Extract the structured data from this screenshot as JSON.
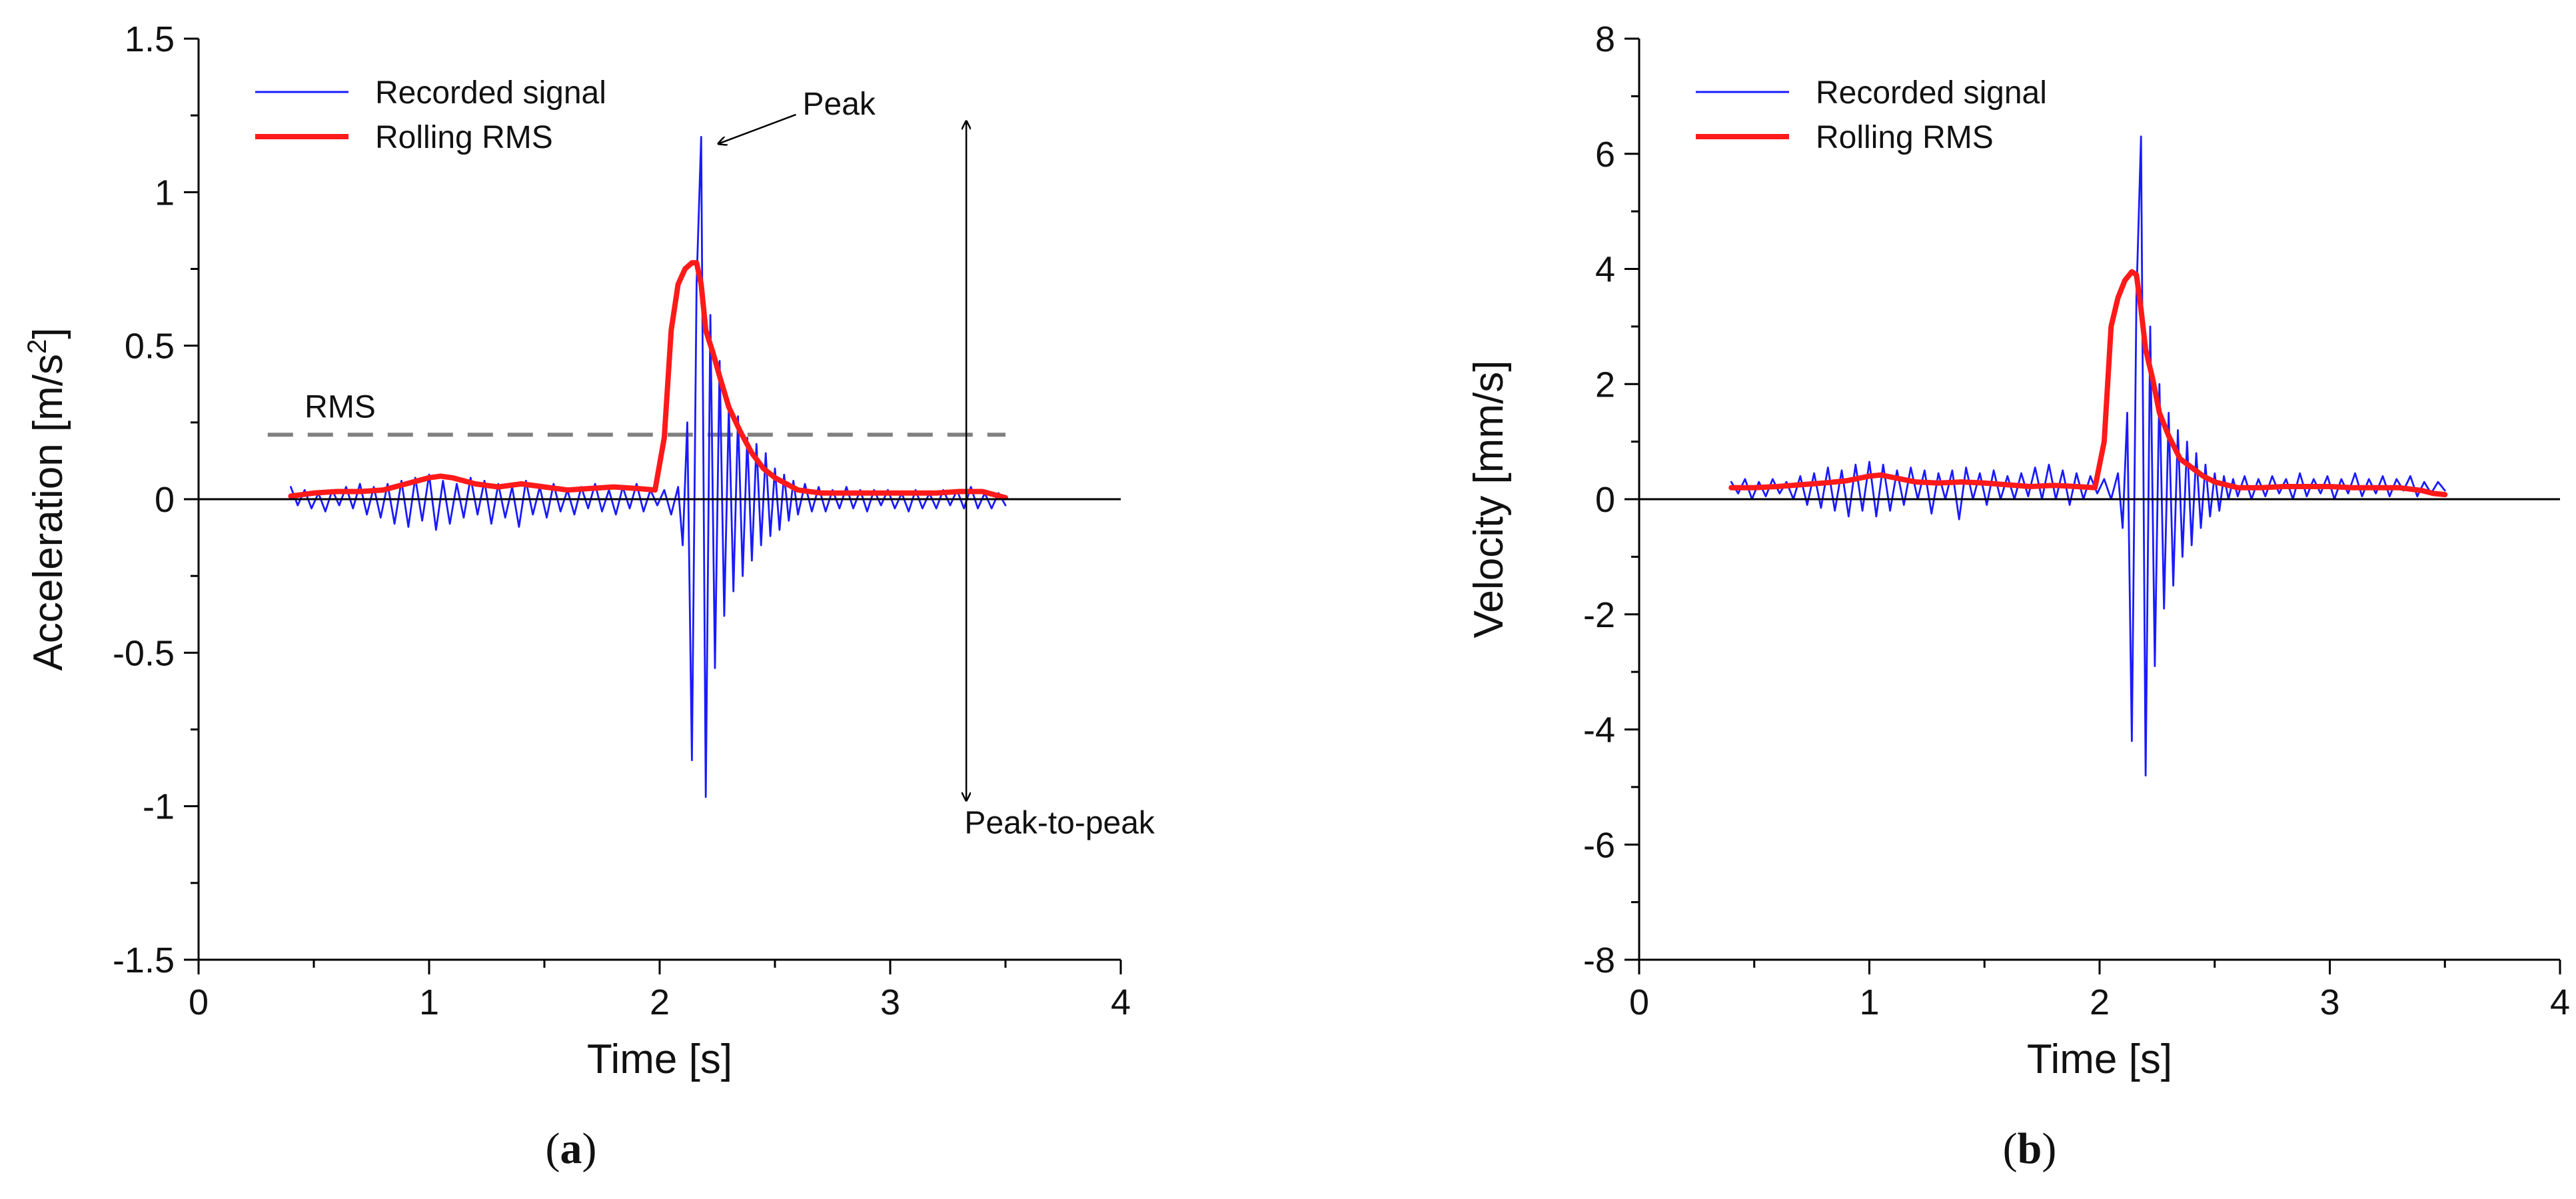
{
  "colors": {
    "signal": "#1a1aff",
    "rms": "#ff1a1a",
    "axis": "#000000",
    "rms_line": "#808080",
    "text": "#111111"
  },
  "chart_data": [
    {
      "id": "a",
      "type": "line",
      "xlabel": "Time  [s]",
      "ylabel": "Acceleration  [m/s²]",
      "xlim": [
        0,
        4
      ],
      "ylim": [
        -1.5,
        1.5
      ],
      "xticks": [
        0,
        1,
        2,
        3,
        4
      ],
      "xtick_labels": [
        "0",
        "1",
        "2",
        "3",
        "4"
      ],
      "yticks": [
        -1.5,
        -1,
        -0.5,
        0,
        0.5,
        1,
        1.5
      ],
      "ytick_labels": [
        "-1.5",
        "-1",
        "-0.5",
        "0",
        "0.5",
        "1",
        "1.5"
      ],
      "legend": [
        "Recorded signal",
        "Rolling RMS"
      ],
      "legend_position": "top-left",
      "caption": "a",
      "rms_level": 0.21,
      "annotations": {
        "rms": "RMS",
        "peak": "Peak",
        "peak_to_peak": "Peak-to-peak",
        "peak_point": [
          2.21,
          1.18
        ],
        "peak_label_point": [
          2.62,
          1.27
        ],
        "p2p_x": 3.33,
        "p2p_range": [
          -0.98,
          1.23
        ],
        "rms_range": [
          0.3,
          3.5
        ]
      },
      "series": [
        {
          "name": "Recorded signal",
          "x": [
            0.4,
            0.43,
            0.46,
            0.49,
            0.52,
            0.55,
            0.58,
            0.61,
            0.64,
            0.67,
            0.7,
            0.73,
            0.76,
            0.79,
            0.82,
            0.85,
            0.88,
            0.91,
            0.94,
            0.97,
            1.0,
            1.03,
            1.06,
            1.09,
            1.12,
            1.15,
            1.18,
            1.21,
            1.24,
            1.27,
            1.3,
            1.33,
            1.36,
            1.39,
            1.42,
            1.45,
            1.48,
            1.51,
            1.54,
            1.57,
            1.6,
            1.63,
            1.66,
            1.69,
            1.72,
            1.75,
            1.78,
            1.81,
            1.84,
            1.87,
            1.9,
            1.93,
            1.96,
            1.99,
            2.02,
            2.05,
            2.08,
            2.1,
            2.12,
            2.14,
            2.16,
            2.18,
            2.2,
            2.22,
            2.24,
            2.26,
            2.28,
            2.3,
            2.32,
            2.34,
            2.36,
            2.38,
            2.4,
            2.42,
            2.44,
            2.46,
            2.48,
            2.5,
            2.52,
            2.54,
            2.56,
            2.58,
            2.6,
            2.63,
            2.66,
            2.69,
            2.72,
            2.75,
            2.78,
            2.81,
            2.84,
            2.87,
            2.9,
            2.93,
            2.96,
            2.99,
            3.02,
            3.05,
            3.08,
            3.11,
            3.14,
            3.17,
            3.2,
            3.23,
            3.26,
            3.29,
            3.32,
            3.35,
            3.38,
            3.41,
            3.44,
            3.47,
            3.5
          ],
          "values": [
            0.04,
            -0.02,
            0.03,
            -0.03,
            0.02,
            -0.04,
            0.03,
            -0.02,
            0.04,
            -0.03,
            0.05,
            -0.05,
            0.04,
            -0.06,
            0.05,
            -0.08,
            0.06,
            -0.09,
            0.07,
            -0.07,
            0.08,
            -0.1,
            0.06,
            -0.08,
            0.05,
            -0.06,
            0.07,
            -0.05,
            0.06,
            -0.08,
            0.05,
            -0.06,
            0.04,
            -0.09,
            0.06,
            -0.05,
            0.04,
            -0.06,
            0.05,
            -0.04,
            0.03,
            -0.05,
            0.04,
            -0.03,
            0.05,
            -0.04,
            0.03,
            -0.05,
            0.04,
            -0.03,
            0.05,
            -0.04,
            0.03,
            -0.02,
            0.03,
            -0.05,
            0.04,
            -0.15,
            0.25,
            -0.85,
            0.7,
            1.18,
            -0.97,
            0.6,
            -0.55,
            0.45,
            -0.38,
            0.3,
            -0.3,
            0.27,
            -0.25,
            0.2,
            -0.2,
            0.18,
            -0.15,
            0.15,
            -0.12,
            0.1,
            -0.1,
            0.08,
            -0.07,
            0.06,
            -0.05,
            0.05,
            -0.04,
            0.04,
            -0.04,
            0.03,
            -0.03,
            0.04,
            -0.03,
            0.03,
            -0.04,
            0.03,
            -0.02,
            0.03,
            -0.03,
            0.02,
            -0.04,
            0.03,
            -0.03,
            0.02,
            -0.03,
            0.03,
            -0.02,
            0.03,
            -0.03,
            0.04,
            -0.03,
            0.02,
            -0.03,
            0.02,
            -0.02
          ]
        },
        {
          "name": "Rolling RMS",
          "x": [
            0.4,
            0.5,
            0.6,
            0.7,
            0.8,
            0.9,
            1.0,
            1.05,
            1.1,
            1.2,
            1.3,
            1.4,
            1.5,
            1.6,
            1.7,
            1.8,
            1.9,
            1.98,
            2.02,
            2.05,
            2.08,
            2.11,
            2.14,
            2.16,
            2.18,
            2.2,
            2.23,
            2.26,
            2.3,
            2.35,
            2.4,
            2.45,
            2.5,
            2.6,
            2.7,
            2.8,
            2.9,
            3.0,
            3.1,
            3.2,
            3.3,
            3.4,
            3.45,
            3.5
          ],
          "values": [
            0.01,
            0.02,
            0.025,
            0.025,
            0.03,
            0.05,
            0.07,
            0.075,
            0.07,
            0.05,
            0.04,
            0.05,
            0.04,
            0.03,
            0.035,
            0.04,
            0.035,
            0.03,
            0.2,
            0.55,
            0.7,
            0.75,
            0.77,
            0.77,
            0.7,
            0.55,
            0.48,
            0.4,
            0.3,
            0.22,
            0.15,
            0.1,
            0.07,
            0.03,
            0.02,
            0.02,
            0.02,
            0.02,
            0.02,
            0.02,
            0.025,
            0.025,
            0.015,
            0.005
          ]
        }
      ]
    },
    {
      "id": "b",
      "type": "line",
      "xlabel": "Time  [s]",
      "ylabel": "Velocity  [mm/s]",
      "xlim": [
        0,
        4
      ],
      "ylim": [
        -8,
        8
      ],
      "xticks": [
        0,
        1,
        2,
        3,
        4
      ],
      "xtick_labels": [
        "0",
        "1",
        "2",
        "3",
        "4"
      ],
      "yticks": [
        -8,
        -6,
        -4,
        -2,
        0,
        2,
        4,
        6,
        8
      ],
      "ytick_labels": [
        "-8",
        "-6",
        "-4",
        "-2",
        "0",
        "2",
        "4",
        "6",
        "8"
      ],
      "legend": [
        "Recorded signal",
        "Rolling RMS"
      ],
      "legend_position": "top-left",
      "caption": "b",
      "series": [
        {
          "name": "Recorded signal",
          "x": [
            0.4,
            0.43,
            0.46,
            0.49,
            0.52,
            0.55,
            0.58,
            0.61,
            0.64,
            0.67,
            0.7,
            0.73,
            0.76,
            0.79,
            0.82,
            0.85,
            0.88,
            0.91,
            0.94,
            0.97,
            1.0,
            1.03,
            1.06,
            1.09,
            1.12,
            1.15,
            1.18,
            1.21,
            1.24,
            1.27,
            1.3,
            1.33,
            1.36,
            1.39,
            1.42,
            1.45,
            1.48,
            1.51,
            1.54,
            1.57,
            1.6,
            1.63,
            1.66,
            1.69,
            1.72,
            1.75,
            1.78,
            1.81,
            1.84,
            1.87,
            1.9,
            1.93,
            1.96,
            1.99,
            2.02,
            2.05,
            2.08,
            2.1,
            2.12,
            2.14,
            2.16,
            2.18,
            2.2,
            2.22,
            2.24,
            2.26,
            2.28,
            2.3,
            2.32,
            2.34,
            2.36,
            2.38,
            2.4,
            2.42,
            2.44,
            2.46,
            2.48,
            2.5,
            2.52,
            2.54,
            2.56,
            2.58,
            2.6,
            2.63,
            2.66,
            2.69,
            2.72,
            2.75,
            2.78,
            2.81,
            2.84,
            2.87,
            2.9,
            2.93,
            2.96,
            2.99,
            3.02,
            3.05,
            3.08,
            3.11,
            3.14,
            3.17,
            3.2,
            3.23,
            3.26,
            3.29,
            3.32,
            3.35,
            3.38,
            3.41,
            3.44,
            3.47,
            3.5
          ],
          "values": [
            0.3,
            0.1,
            0.35,
            0.0,
            0.3,
            0.05,
            0.35,
            0.1,
            0.3,
            0.0,
            0.4,
            -0.1,
            0.45,
            -0.15,
            0.55,
            -0.2,
            0.5,
            -0.3,
            0.6,
            -0.2,
            0.65,
            -0.3,
            0.6,
            -0.2,
            0.5,
            -0.1,
            0.55,
            0.0,
            0.5,
            -0.25,
            0.45,
            0.0,
            0.5,
            -0.35,
            0.55,
            0.0,
            0.45,
            -0.1,
            0.5,
            0.0,
            0.4,
            0.0,
            0.45,
            0.05,
            0.55,
            0.0,
            0.6,
            0.0,
            0.5,
            -0.1,
            0.45,
            0.0,
            0.4,
            0.1,
            0.35,
            0.0,
            0.45,
            -0.5,
            1.5,
            -4.2,
            3.5,
            6.3,
            -4.8,
            3.0,
            -2.9,
            2.0,
            -1.9,
            1.5,
            -1.5,
            1.2,
            -1.0,
            1.0,
            -0.8,
            0.8,
            -0.5,
            0.6,
            -0.3,
            0.45,
            -0.2,
            0.4,
            0.0,
            0.35,
            0.05,
            0.4,
            0.0,
            0.35,
            0.05,
            0.4,
            0.1,
            0.35,
            0.0,
            0.45,
            0.05,
            0.35,
            0.1,
            0.4,
            0.0,
            0.35,
            0.1,
            0.45,
            0.05,
            0.35,
            0.1,
            0.4,
            0.05,
            0.35,
            0.15,
            0.4,
            0.05,
            0.3,
            0.1,
            0.3,
            0.15
          ]
        },
        {
          "name": "Rolling RMS",
          "x": [
            0.4,
            0.5,
            0.6,
            0.7,
            0.8,
            0.9,
            1.0,
            1.05,
            1.1,
            1.2,
            1.3,
            1.4,
            1.5,
            1.6,
            1.7,
            1.8,
            1.9,
            1.98,
            2.02,
            2.05,
            2.08,
            2.11,
            2.14,
            2.16,
            2.18,
            2.2,
            2.23,
            2.26,
            2.3,
            2.35,
            2.4,
            2.45,
            2.5,
            2.6,
            2.7,
            2.8,
            2.9,
            3.0,
            3.1,
            3.2,
            3.3,
            3.4,
            3.45,
            3.5
          ],
          "values": [
            0.2,
            0.2,
            0.22,
            0.25,
            0.28,
            0.32,
            0.4,
            0.42,
            0.38,
            0.3,
            0.28,
            0.3,
            0.28,
            0.25,
            0.22,
            0.24,
            0.22,
            0.2,
            1.0,
            3.0,
            3.5,
            3.8,
            3.95,
            3.9,
            3.3,
            2.6,
            2.1,
            1.5,
            1.1,
            0.7,
            0.55,
            0.4,
            0.3,
            0.2,
            0.2,
            0.22,
            0.22,
            0.22,
            0.2,
            0.2,
            0.2,
            0.15,
            0.1,
            0.08
          ]
        }
      ]
    }
  ]
}
